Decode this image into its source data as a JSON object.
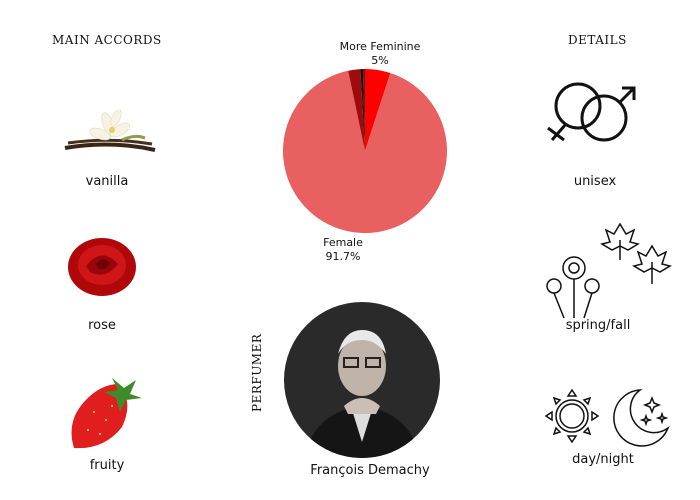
{
  "headers": {
    "main_accords": "MAIN ACCORDS",
    "details": "DETAILS",
    "perfumer": "PERFUMER"
  },
  "accords": [
    {
      "label": "vanilla",
      "icon": "vanilla-image"
    },
    {
      "label": "rose",
      "icon": "rose-image"
    },
    {
      "label": "fruity",
      "icon": "strawberry-image"
    }
  ],
  "details": [
    {
      "label": "unisex",
      "icon": "gender-icon"
    },
    {
      "label": "spring/fall",
      "icon": "flowers-leaves-icon"
    },
    {
      "label": "day/night",
      "icon": "sun-moon-icon"
    }
  ],
  "perfumer": {
    "name": "François Demachy"
  },
  "chart_data": {
    "type": "pie",
    "slices": [
      {
        "name": "More Feminine",
        "value": 5,
        "label": "5%",
        "color": "#ff0000"
      },
      {
        "name": "Female",
        "value": 91.7,
        "label": "91.7%",
        "color": "#e96060"
      },
      {
        "value": 2.4,
        "color": "#a00a0a"
      },
      {
        "value": 0.5,
        "color": "#111111"
      },
      {
        "value": 0.4,
        "color": "#7a1010"
      }
    ]
  }
}
